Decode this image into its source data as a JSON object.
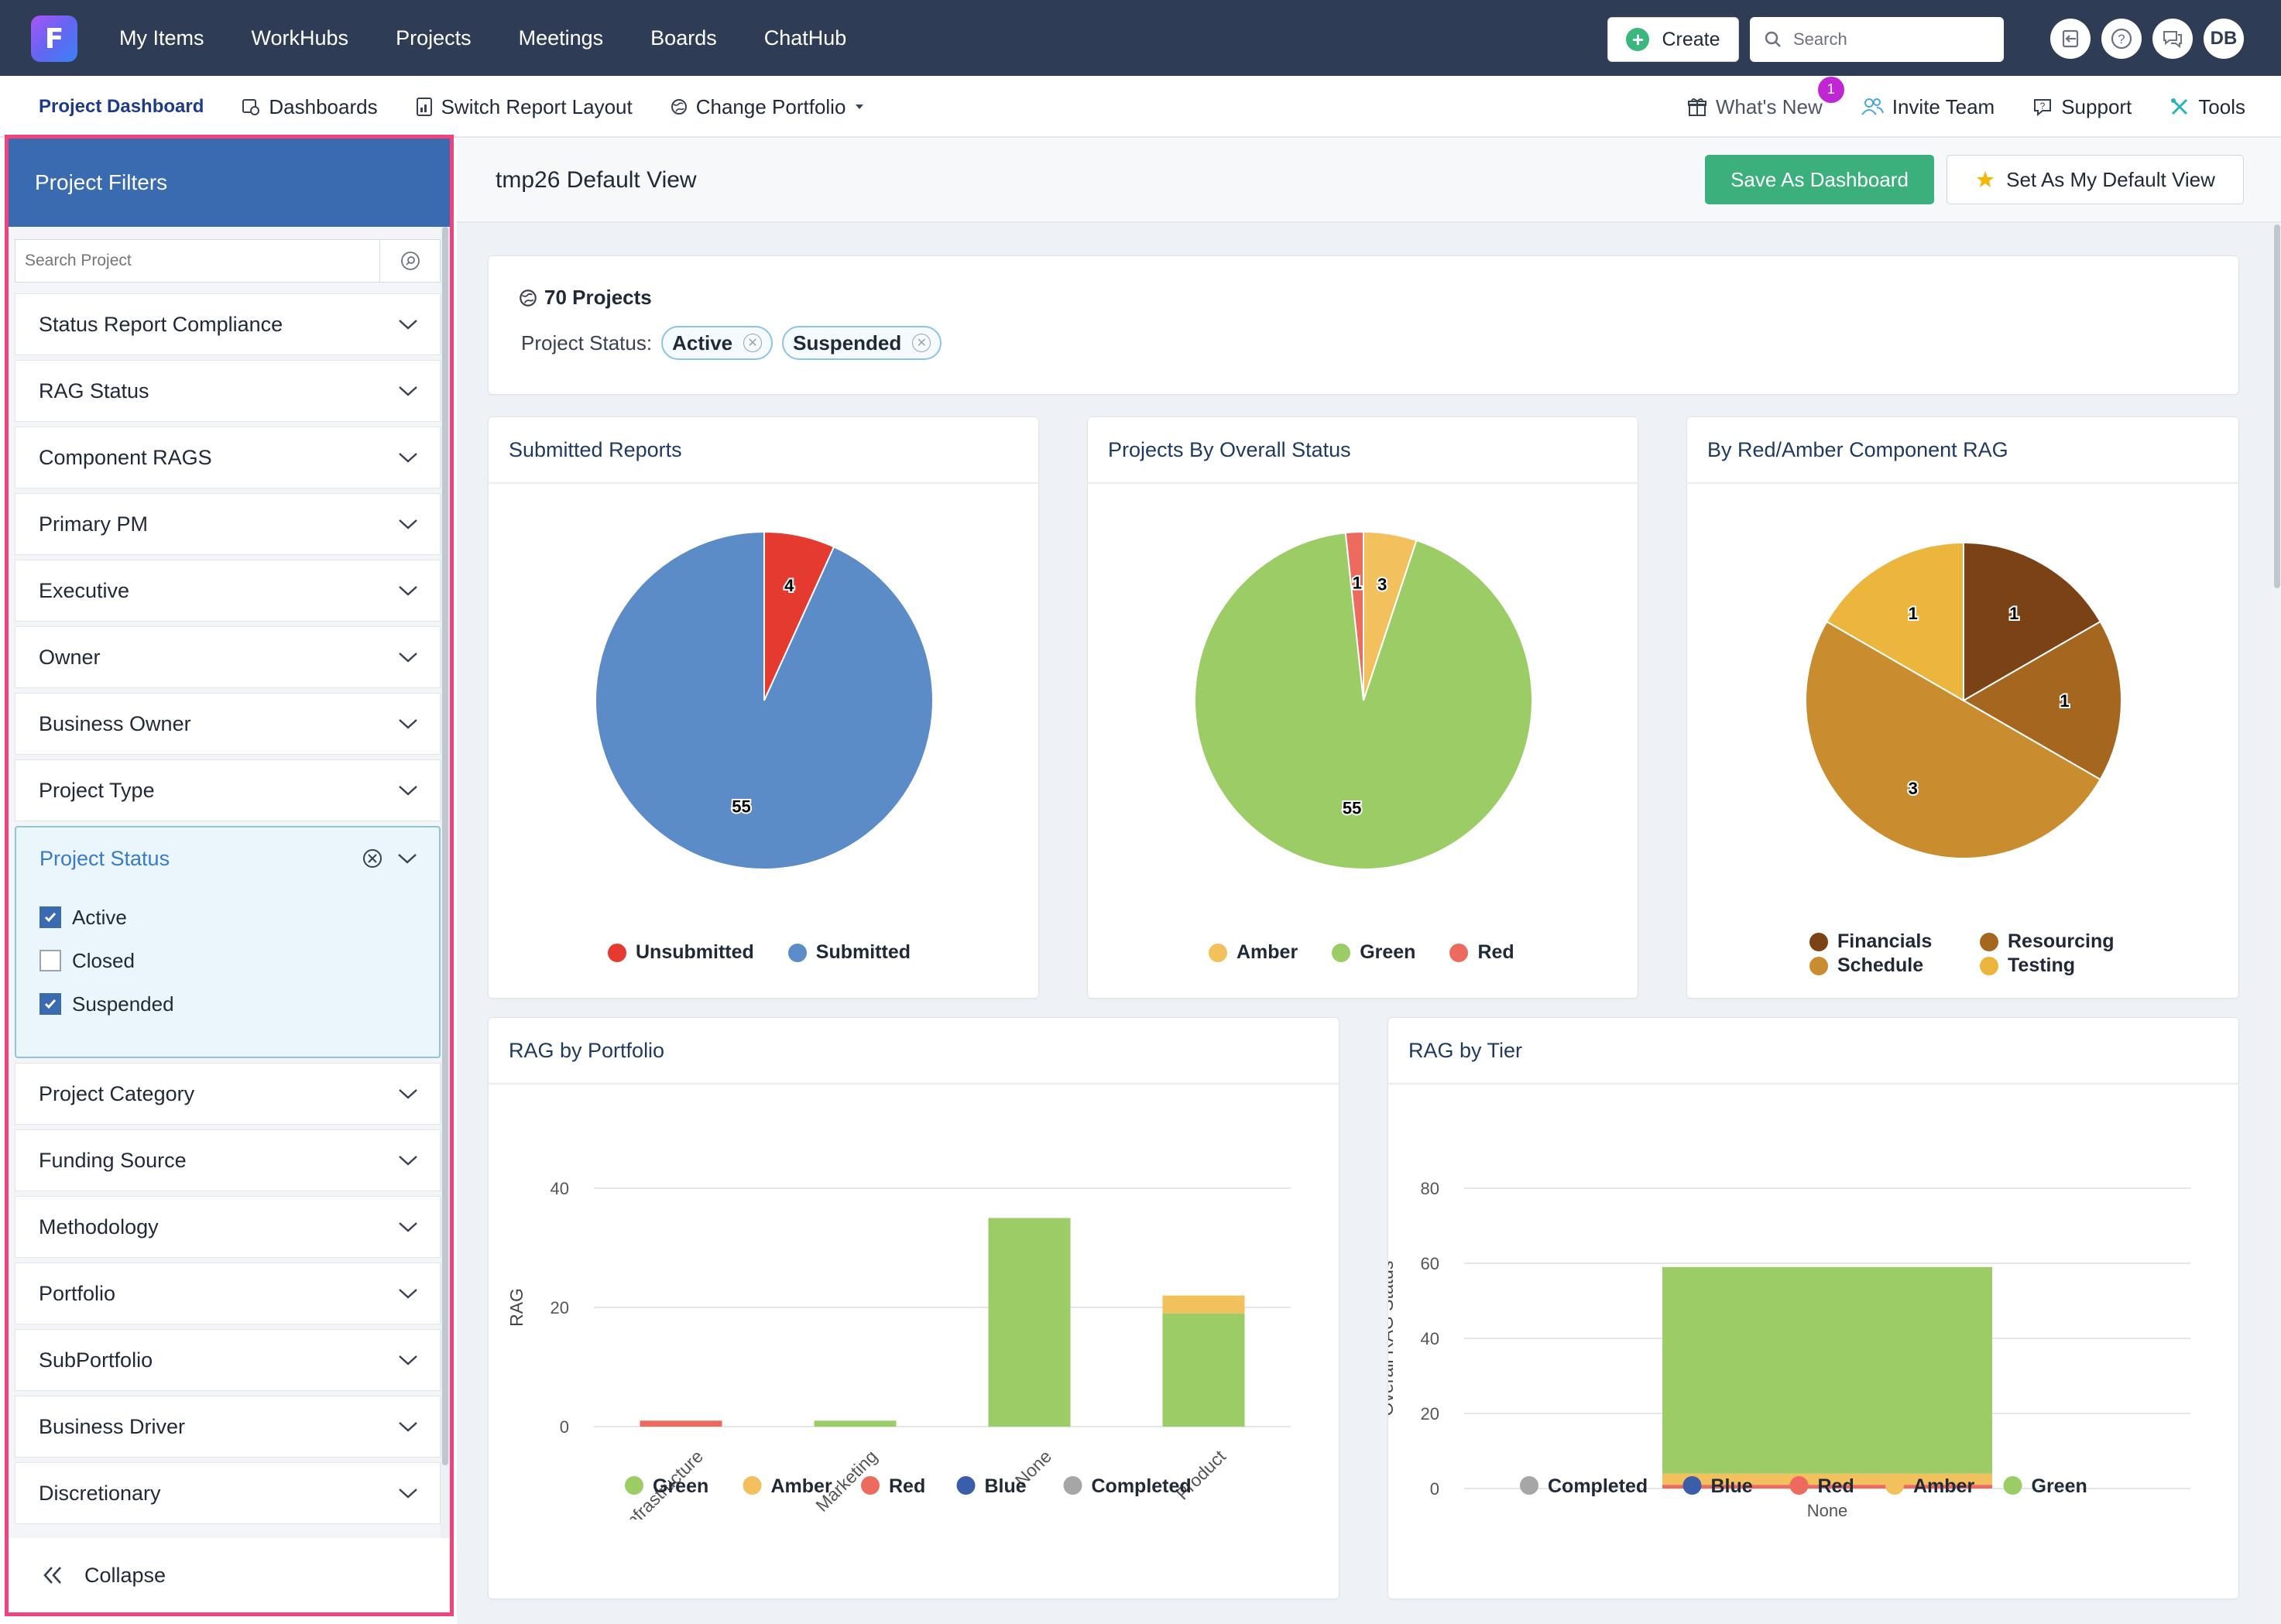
{
  "topnav": {
    "logo_letter": "F",
    "items": [
      "My Items",
      "WorkHubs",
      "Projects",
      "Meetings",
      "Boards",
      "ChatHub"
    ],
    "create_label": "Create",
    "search_placeholder": "Search",
    "avatar_initials": "DB"
  },
  "subnav": {
    "left": [
      "Project Dashboard",
      "Dashboards",
      "Switch Report Layout",
      "Change Portfolio"
    ],
    "whats_new": "What's New",
    "whats_new_badge": "1",
    "invite": "Invite Team",
    "support": "Support",
    "tools": "Tools"
  },
  "sidebar": {
    "title": "Project Filters",
    "search_placeholder": "Search Project",
    "filters_top": [
      "Status Report Compliance",
      "RAG Status",
      "Component RAGS",
      "Primary PM",
      "Executive",
      "Owner",
      "Business Owner",
      "Project Type"
    ],
    "open_filter": {
      "label": "Project Status",
      "options": [
        {
          "label": "Active",
          "checked": true
        },
        {
          "label": "Closed",
          "checked": false
        },
        {
          "label": "Suspended",
          "checked": true
        }
      ]
    },
    "filters_bottom": [
      "Project Category",
      "Funding Source",
      "Methodology",
      "Portfolio",
      "SubPortfolio",
      "Business Driver",
      "Discretionary"
    ],
    "collapse_label": "Collapse"
  },
  "main": {
    "view_title": "tmp26 Default View",
    "save_dashboard": "Save As Dashboard",
    "set_default": "Set As My Default View",
    "projects_count": "70 Projects",
    "status_label": "Project Status:",
    "status_chips": [
      "Active",
      "Suspended"
    ]
  },
  "colors": {
    "green": "#9ccc65",
    "amber": "#f2c05c",
    "red": "#ec6b5e",
    "blue": "#3b5ea8",
    "completed": "#a6a6a6",
    "submitted": "#5b8cc8",
    "unsubmitted": "#e53a2f",
    "financials": "#7b4216",
    "resourcing": "#a5661f",
    "schedule": "#c98d2f",
    "testing": "#ecb63e",
    "accent": "#3a6bb0",
    "save_green": "#3bb07d"
  },
  "chart_data": [
    {
      "type": "pie",
      "title": "Submitted Reports",
      "labels": [
        "Unsubmitted",
        "Submitted"
      ],
      "values": [
        4,
        55
      ]
    },
    {
      "type": "pie",
      "title": "Projects By Overall Status",
      "labels": [
        "Amber",
        "Green",
        "Red"
      ],
      "values": [
        3,
        55,
        1
      ]
    },
    {
      "type": "pie",
      "title": "By Red/Amber Component RAG",
      "labels": [
        "Financials",
        "Resourcing",
        "Schedule",
        "Testing"
      ],
      "values": [
        1,
        1,
        3,
        1
      ]
    },
    {
      "type": "bar",
      "stacked": true,
      "title": "RAG by Portfolio",
      "ylabel": "RAG",
      "categories": [
        "Infrastructure",
        "Marketing",
        "None",
        "Product"
      ],
      "ylim": [
        0,
        40
      ],
      "yticks": [
        0,
        20,
        40
      ],
      "series": [
        {
          "name": "Green",
          "values": [
            0,
            1,
            35,
            19
          ]
        },
        {
          "name": "Amber",
          "values": [
            0,
            0,
            0,
            3
          ]
        },
        {
          "name": "Red",
          "values": [
            1,
            0,
            0,
            0
          ]
        },
        {
          "name": "Blue",
          "values": [
            0,
            0,
            0,
            0
          ]
        },
        {
          "name": "Completed",
          "values": [
            0,
            0,
            0,
            0
          ]
        }
      ],
      "legend_position": "bottom"
    },
    {
      "type": "bar",
      "stacked": true,
      "title": "RAG by Tier",
      "ylabel": "Overall RAG Status",
      "categories": [
        "None"
      ],
      "ylim": [
        0,
        80
      ],
      "yticks": [
        0,
        20,
        40,
        60,
        80
      ],
      "series": [
        {
          "name": "Completed",
          "values": [
            0
          ]
        },
        {
          "name": "Blue",
          "values": [
            0
          ]
        },
        {
          "name": "Red",
          "values": [
            1
          ]
        },
        {
          "name": "Amber",
          "values": [
            3
          ]
        },
        {
          "name": "Green",
          "values": [
            55
          ]
        }
      ],
      "legend_position": "bottom"
    }
  ]
}
